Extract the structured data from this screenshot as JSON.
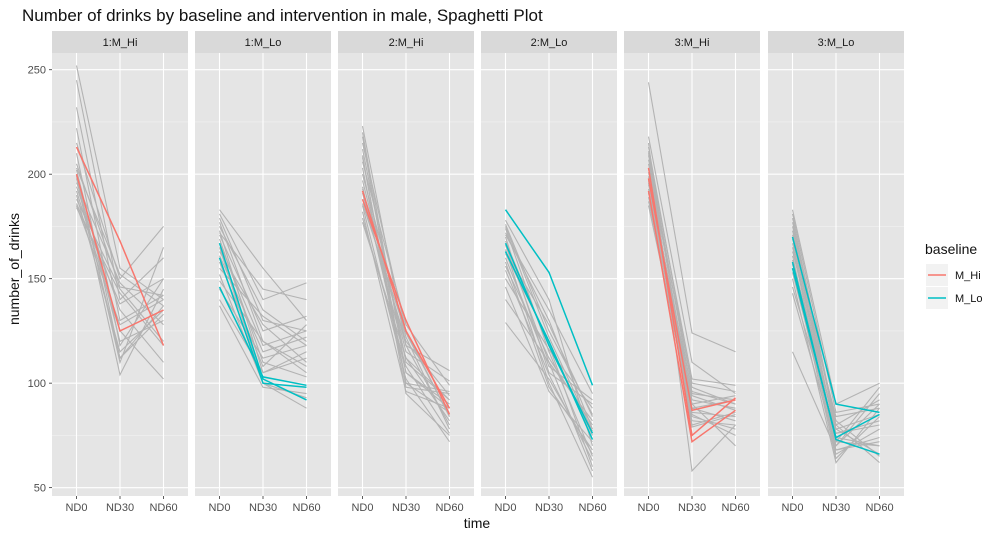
{
  "chart_data": {
    "type": "line",
    "title": "Number of drinks by baseline and intervention in male, Spaghetti Plot",
    "xlabel": "time",
    "ylabel": "number_of_drinks",
    "x_categories": [
      "ND0",
      "ND30",
      "ND60"
    ],
    "y_ticks": [
      50,
      100,
      150,
      200,
      250
    ],
    "ylim": [
      46,
      258
    ],
    "grid": true,
    "background_color": "#e5e5e5",
    "strip_color": "#d9d9d9",
    "legend": {
      "title": "baseline",
      "position": "right",
      "entries": [
        {
          "label": "M_Hi",
          "color": "#f8766d"
        },
        {
          "label": "M_Lo",
          "color": "#00bfc4"
        }
      ]
    },
    "background_line_color": "#b3b3b3",
    "panels": [
      {
        "label": "1:M_Hi",
        "grey_lines": [
          [
            252,
            155,
            140
          ],
          [
            245,
            140,
            160
          ],
          [
            232,
            130,
            142
          ],
          [
            222,
            118,
            150
          ],
          [
            215,
            150,
            175
          ],
          [
            210,
            112,
            137
          ],
          [
            205,
            146,
            142
          ],
          [
            202,
            120,
            130
          ],
          [
            200,
            110,
            165
          ],
          [
            198,
            104,
            145
          ],
          [
            196,
            148,
            128
          ],
          [
            194,
            135,
            110
          ],
          [
            192,
            125,
            102
          ],
          [
            190,
            115,
            135
          ],
          [
            188,
            145,
            120
          ],
          [
            186,
            138,
            150
          ],
          [
            185,
            128,
            140
          ],
          [
            184,
            143,
            118
          ],
          [
            199,
            112,
            133
          ],
          [
            203,
            152,
            137
          ]
        ],
        "highlights": [
          {
            "group": "M_Hi",
            "values": [
              213,
              168,
              118
            ]
          },
          {
            "group": "M_Hi",
            "values": [
              200,
              125,
              135
            ]
          }
        ]
      },
      {
        "label": "1:M_Lo",
        "grey_lines": [
          [
            183,
            155,
            130
          ],
          [
            181,
            140,
            148
          ],
          [
            179,
            130,
            125
          ],
          [
            177,
            120,
            108
          ],
          [
            175,
            135,
            120
          ],
          [
            173,
            105,
            115
          ],
          [
            171,
            125,
            132
          ],
          [
            169,
            110,
            103
          ],
          [
            167,
            118,
            125
          ],
          [
            165,
            100,
            93
          ],
          [
            163,
            128,
            110
          ],
          [
            161,
            115,
            122
          ],
          [
            158,
            108,
            128
          ],
          [
            155,
            132,
            118
          ],
          [
            152,
            100,
            88
          ],
          [
            149,
            120,
            105
          ],
          [
            145,
            112,
            118
          ],
          [
            140,
            105,
            112
          ],
          [
            137,
            98,
            95
          ],
          [
            172,
            145,
            140
          ]
        ],
        "highlights": [
          {
            "group": "M_Lo",
            "values": [
              167,
              102,
              92
            ]
          },
          {
            "group": "M_Lo",
            "values": [
              160,
              100,
              98
            ]
          },
          {
            "group": "M_Lo",
            "values": [
              146,
              103,
              99
            ]
          }
        ]
      },
      {
        "label": "2:M_Hi",
        "grey_lines": [
          [
            223,
            118,
            80
          ],
          [
            220,
            105,
            88
          ],
          [
            218,
            98,
            95
          ],
          [
            215,
            125,
            84
          ],
          [
            212,
            110,
            92
          ],
          [
            209,
            95,
            75
          ],
          [
            206,
            128,
            99
          ],
          [
            203,
            100,
            86
          ],
          [
            200,
            122,
            78
          ],
          [
            197,
            115,
            101
          ],
          [
            194,
            105,
            90
          ],
          [
            191,
            112,
            82
          ],
          [
            188,
            120,
            94
          ],
          [
            185,
            102,
            72
          ],
          [
            182,
            96,
            88
          ],
          [
            179,
            108,
            76
          ],
          [
            193,
            118,
            106
          ],
          [
            208,
            100,
            96
          ],
          [
            186,
            124,
            84
          ],
          [
            177,
            112,
            92
          ]
        ],
        "highlights": [
          {
            "group": "M_Hi",
            "values": [
              192,
              125,
              88
            ]
          },
          {
            "group": "M_Hi",
            "values": [
              188,
              130,
              85
            ]
          }
        ]
      },
      {
        "label": "2:M_Lo",
        "grey_lines": [
          [
            178,
            140,
            70
          ],
          [
            176,
            125,
            85
          ],
          [
            174,
            115,
            65
          ],
          [
            172,
            130,
            78
          ],
          [
            170,
            105,
            90
          ],
          [
            168,
            118,
            60
          ],
          [
            166,
            110,
            82
          ],
          [
            164,
            100,
            55
          ],
          [
            162,
            120,
            75
          ],
          [
            160,
            108,
            92
          ],
          [
            158,
            98,
            68
          ],
          [
            156,
            112,
            80
          ],
          [
            154,
            104,
            63
          ],
          [
            150,
            116,
            88
          ],
          [
            146,
            96,
            72
          ],
          [
            140,
            110,
            58
          ],
          [
            129,
            102,
            66
          ],
          [
            171,
            135,
            95
          ],
          [
            163,
            128,
            84
          ],
          [
            175,
            122,
            77
          ]
        ],
        "highlights": [
          {
            "group": "M_Lo",
            "values": [
              183,
              153,
              99
            ]
          },
          {
            "group": "M_Lo",
            "values": [
              167,
              118,
              76
            ]
          },
          {
            "group": "M_Lo",
            "values": [
              163,
              120,
              73
            ]
          }
        ]
      },
      {
        "label": "3:M_Hi",
        "grey_lines": [
          [
            244,
            124,
            115
          ],
          [
            218,
            110,
            95
          ],
          [
            215,
            58,
            80
          ],
          [
            213,
            98,
            90
          ],
          [
            211,
            85,
            75
          ],
          [
            209,
            95,
            92
          ],
          [
            207,
            90,
            70
          ],
          [
            205,
            80,
            86
          ],
          [
            203,
            100,
            96
          ],
          [
            201,
            88,
            82
          ],
          [
            199,
            92,
            88
          ],
          [
            197,
            84,
            78
          ],
          [
            195,
            96,
            90
          ],
          [
            193,
            86,
            84
          ],
          [
            191,
            90,
            94
          ],
          [
            189,
            82,
            80
          ],
          [
            187,
            94,
            87
          ],
          [
            185,
            88,
            92
          ],
          [
            210,
            102,
            99
          ],
          [
            196,
            79,
            85
          ]
        ],
        "highlights": [
          {
            "group": "M_Hi",
            "values": [
              203,
              75,
              93
            ]
          },
          {
            "group": "M_Hi",
            "values": [
              198,
              87,
              92
            ]
          },
          {
            "group": "M_Hi",
            "values": [
              192,
              72,
              87
            ]
          }
        ]
      },
      {
        "label": "3:M_Lo",
        "grey_lines": [
          [
            183,
            90,
            100
          ],
          [
            181,
            86,
            90
          ],
          [
            179,
            80,
            62
          ],
          [
            177,
            78,
            85
          ],
          [
            175,
            74,
            70
          ],
          [
            173,
            70,
            95
          ],
          [
            171,
            82,
            65
          ],
          [
            169,
            76,
            80
          ],
          [
            167,
            72,
            98
          ],
          [
            165,
            68,
            74
          ],
          [
            163,
            84,
            88
          ],
          [
            161,
            66,
            78
          ],
          [
            159,
            78,
            66
          ],
          [
            157,
            64,
            84
          ],
          [
            155,
            80,
            92
          ],
          [
            153,
            72,
            70
          ],
          [
            150,
            62,
            88
          ],
          [
            146,
            76,
            82
          ],
          [
            143,
            70,
            90
          ],
          [
            115,
            68,
            72
          ]
        ],
        "highlights": [
          {
            "group": "M_Lo",
            "values": [
              170,
              90,
              86
            ]
          },
          {
            "group": "M_Lo",
            "values": [
              158,
              73,
              66
            ]
          },
          {
            "group": "M_Lo",
            "values": [
              155,
              74,
              85
            ]
          }
        ]
      }
    ]
  }
}
